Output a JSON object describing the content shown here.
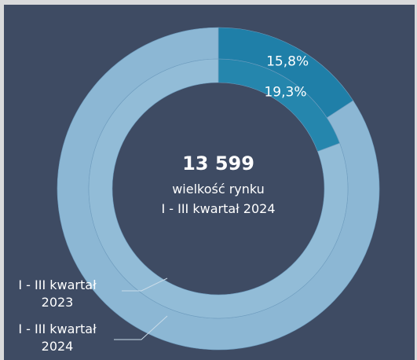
{
  "chart_data": {
    "type": "donut",
    "center_value": {
      "value": 13599,
      "label": "13 599"
    },
    "center_lines": [
      "wielkość rynku",
      "I - III kwartał 2024"
    ],
    "series": [
      {
        "name": "I - III kwartał 2024",
        "ring": "outer",
        "values": [
          15.8,
          84.2
        ],
        "value_labels": [
          "15,8%",
          null
        ],
        "colors": [
          "#1f7fa8",
          "#8cb7d4"
        ]
      },
      {
        "name": "I - III kwartał 2023",
        "ring": "inner",
        "values": [
          19.3,
          80.7
        ],
        "value_labels": [
          "19,3%",
          null
        ],
        "colors": [
          "#2586ad",
          "#92bcd7"
        ]
      }
    ]
  }
}
